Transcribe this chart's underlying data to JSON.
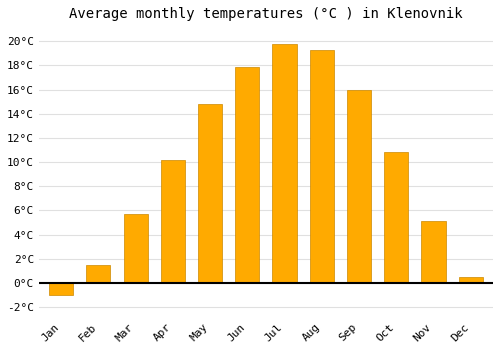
{
  "months": [
    "Jan",
    "Feb",
    "Mar",
    "Apr",
    "May",
    "Jun",
    "Jul",
    "Aug",
    "Sep",
    "Oct",
    "Nov",
    "Dec"
  ],
  "values": [
    -1.0,
    1.5,
    5.7,
    10.2,
    14.8,
    17.9,
    19.8,
    19.3,
    16.0,
    10.8,
    5.1,
    0.5
  ],
  "bar_color": "#FFAA00",
  "bar_edge_color": "#CC8800",
  "title": "Average monthly temperatures (°C ) in Klenovnik",
  "ylim": [
    -2.8,
    21.0
  ],
  "yticks": [
    -2,
    0,
    2,
    4,
    6,
    8,
    10,
    12,
    14,
    16,
    18,
    20
  ],
  "background_color": "#ffffff",
  "plot_bg_color": "#ffffff",
  "grid_color": "#e0e0e0",
  "title_fontsize": 10,
  "tick_fontsize": 8,
  "font_family": "monospace",
  "bar_width": 0.65
}
